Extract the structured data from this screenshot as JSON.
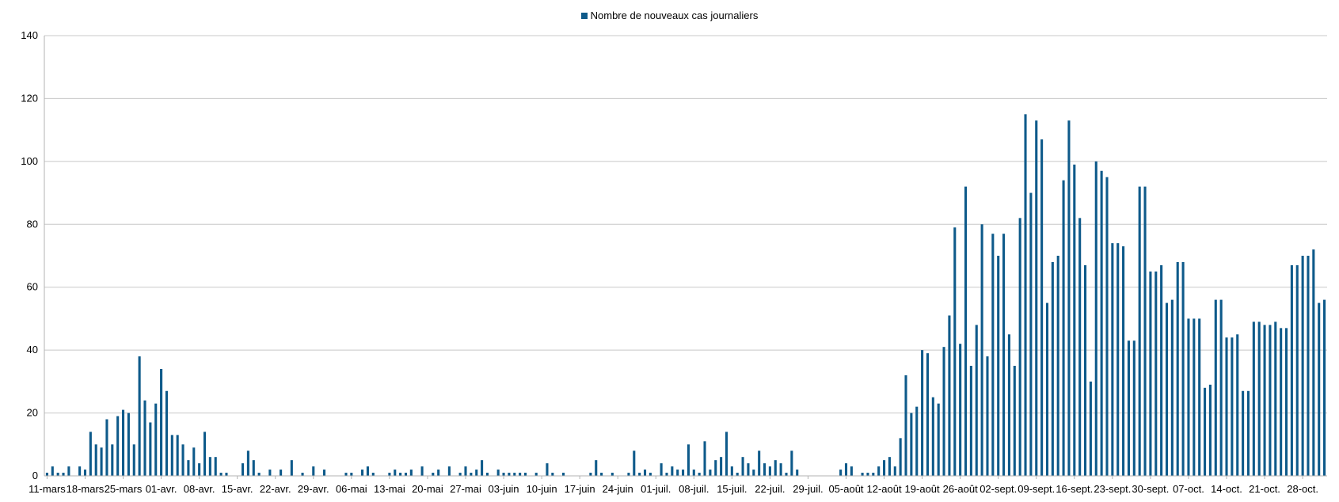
{
  "chart_data": {
    "type": "bar",
    "series": [
      {
        "name": "Nombre de nouveaux cas journaliers",
        "color": "#0e5a8a",
        "start_date": "2020-03-11",
        "values": [
          1,
          3,
          1,
          1,
          3,
          0,
          3,
          2,
          14,
          10,
          9,
          18,
          10,
          19,
          21,
          20,
          10,
          38,
          24,
          17,
          23,
          34,
          27,
          13,
          13,
          10,
          5,
          9,
          4,
          14,
          6,
          6,
          1,
          1,
          0,
          0,
          4,
          8,
          5,
          1,
          0,
          2,
          0,
          2,
          0,
          5,
          0,
          1,
          0,
          3,
          0,
          2,
          0,
          0,
          0,
          1,
          1,
          0,
          2,
          3,
          1,
          0,
          0,
          1,
          2,
          1,
          1,
          2,
          0,
          3,
          0,
          1,
          2,
          0,
          3,
          0,
          1,
          3,
          1,
          2,
          5,
          1,
          0,
          2,
          1,
          1,
          1,
          1,
          1,
          0,
          1,
          0,
          4,
          1,
          0,
          1,
          0,
          0,
          0,
          0,
          1,
          5,
          1,
          0,
          1,
          0,
          0,
          1,
          8,
          1,
          2,
          1,
          0,
          4,
          1,
          3,
          2,
          2,
          10,
          2,
          1,
          11,
          2,
          5,
          6,
          14,
          3,
          1,
          6,
          4,
          2,
          8,
          4,
          3,
          5,
          4,
          1,
          8,
          2,
          0,
          0,
          0,
          0,
          0,
          0,
          0,
          2,
          4,
          3,
          0,
          1,
          1,
          1,
          3,
          5,
          6,
          3,
          12,
          32,
          20,
          22,
          40,
          39,
          25,
          23,
          41,
          51,
          79,
          42,
          92,
          35,
          48,
          80,
          38,
          77,
          70,
          77,
          45,
          35,
          82,
          115,
          90,
          113,
          107,
          55,
          68,
          70,
          94,
          113,
          99,
          82,
          67,
          30,
          100,
          97,
          95,
          74,
          74,
          73,
          43,
          43,
          92,
          92,
          65,
          65,
          67,
          55,
          56,
          68,
          68,
          50,
          50,
          50,
          28,
          29,
          56,
          56,
          44,
          44,
          45,
          27,
          27,
          49,
          49,
          48,
          48,
          49,
          47,
          47,
          67,
          67,
          70,
          70,
          72,
          55,
          56
        ]
      }
    ],
    "x_tick_labels": [
      "11-mars",
      "18-mars",
      "25-mars",
      "01-avr.",
      "08-avr.",
      "15-avr.",
      "22-avr.",
      "29-avr.",
      "06-mai",
      "13-mai",
      "20-mai",
      "27-mai",
      "03-juin",
      "10-juin",
      "17-juin",
      "24-juin",
      "01-juil.",
      "08-juil.",
      "15-juil.",
      "22-juil.",
      "29-juil.",
      "05-août",
      "12-août",
      "19-août",
      "26-août",
      "02-sept.",
      "09-sept.",
      "16-sept.",
      "23-sept.",
      "30-sept.",
      "07-oct.",
      "14-oct.",
      "21-oct.",
      "28-oct."
    ],
    "x_tick_every_days": 7,
    "y_ticks": [
      0,
      20,
      40,
      60,
      80,
      100,
      120,
      140
    ],
    "ylim": [
      0,
      140
    ],
    "title": "",
    "xlabel": "",
    "ylabel": "",
    "grid": true,
    "legend_position": "top"
  }
}
